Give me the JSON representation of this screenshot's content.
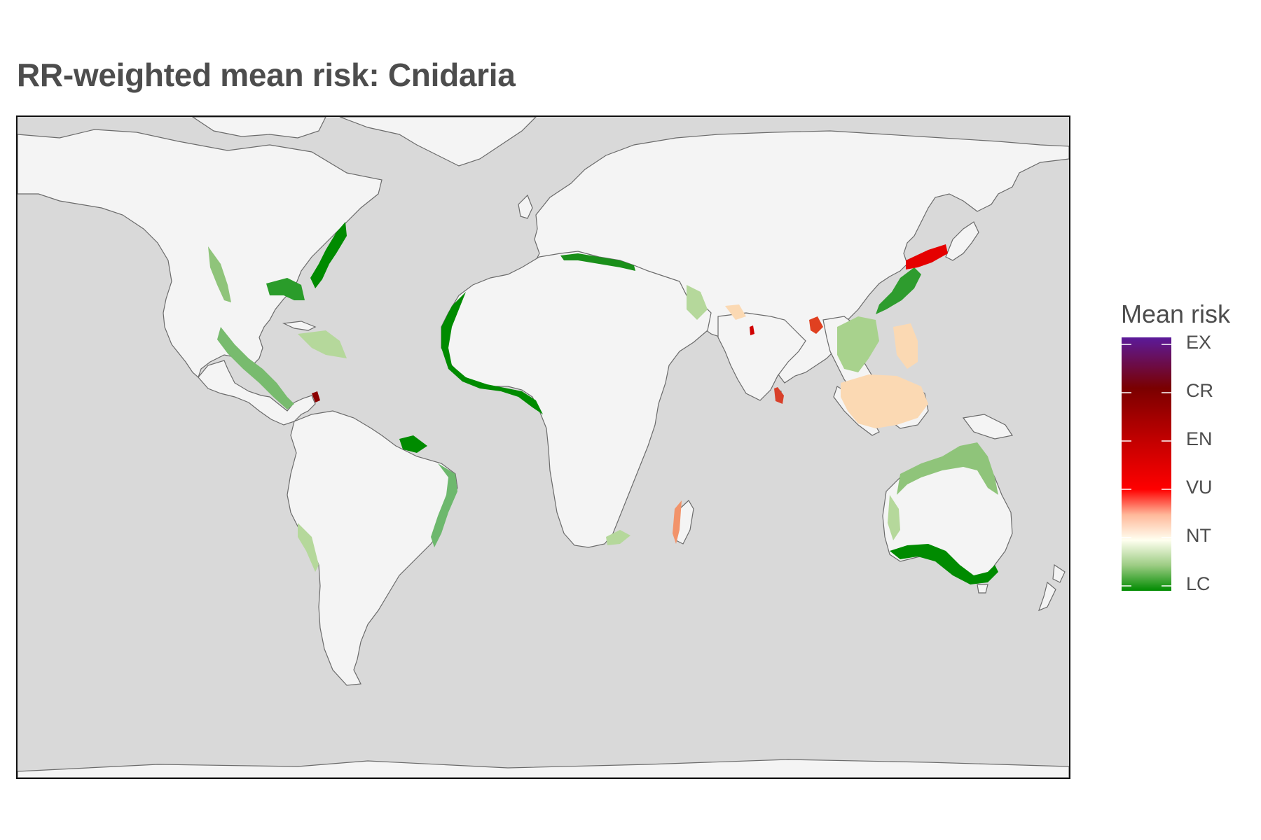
{
  "title": "RR-weighted mean risk: Cnidaria",
  "legend": {
    "title": "Mean risk",
    "labels": [
      "EX",
      "CR",
      "EN",
      "VU",
      "NT",
      "LC"
    ]
  },
  "colors": {
    "ocean": "#d9d9d9",
    "land": "#f4f4f4",
    "coastline": "#6b6b6b",
    "lc": "#008b00",
    "nt": "#fffff0",
    "vu": "#ff0000",
    "en": "#c80000",
    "cr": "#8b0000",
    "ex": "#5b1a9a"
  }
}
